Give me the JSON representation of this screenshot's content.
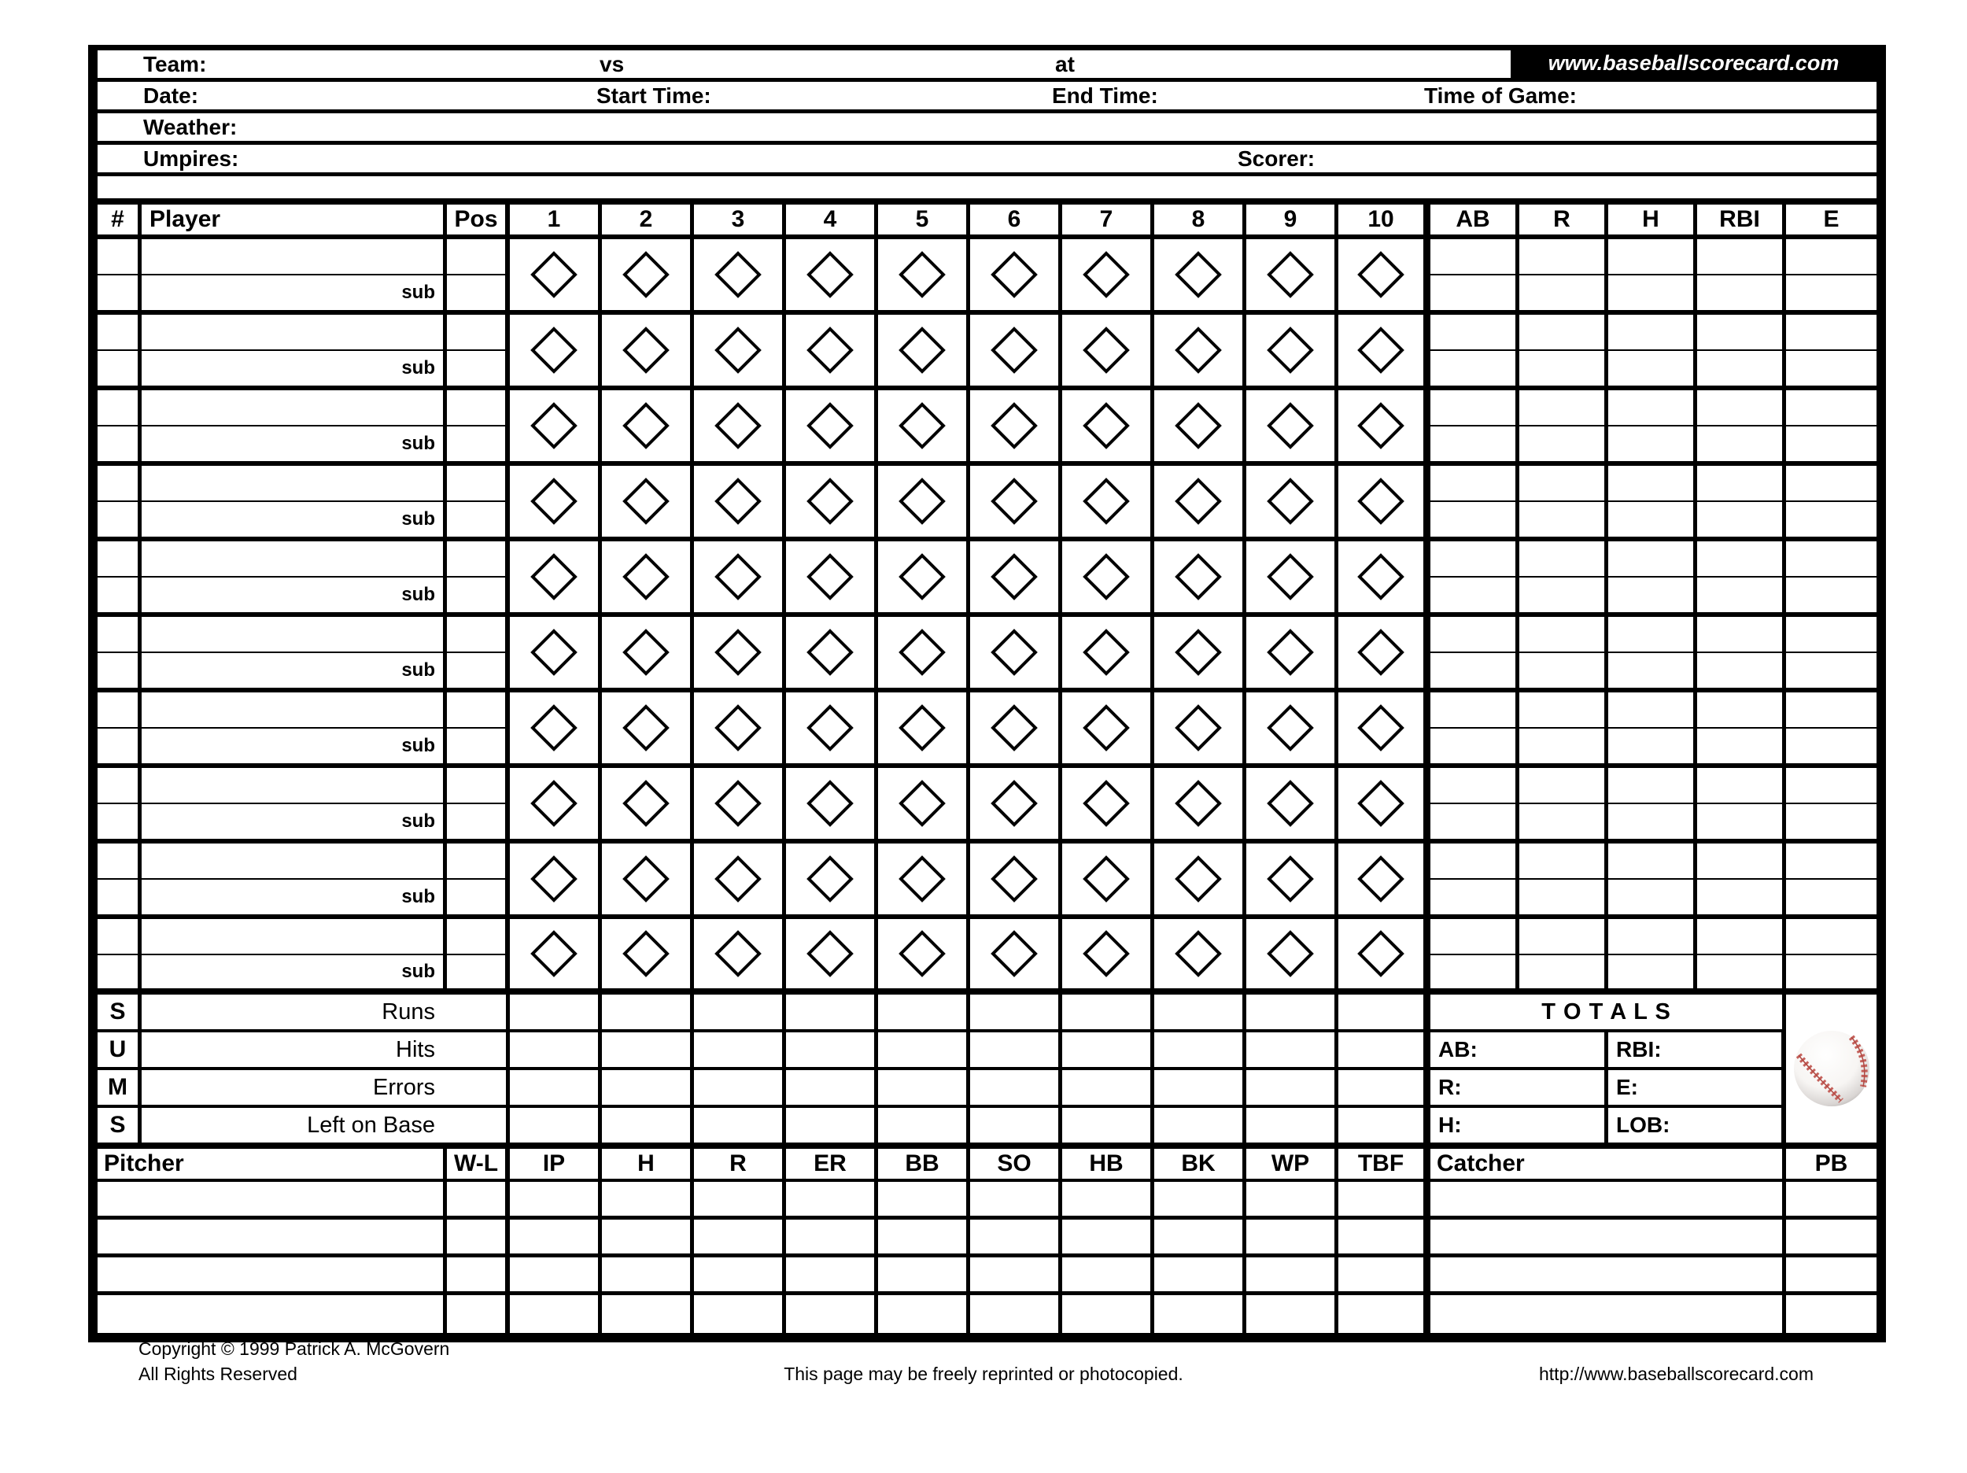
{
  "site_banner": "www.baseballscorecard.com",
  "header": {
    "team_label": "Team:",
    "vs_label": "vs",
    "at_label": "at",
    "date_label": "Date:",
    "start_time_label": "Start Time:",
    "end_time_label": "End Time:",
    "time_of_game_label": "Time of Game:",
    "weather_label": "Weather:",
    "umpires_label": "Umpires:",
    "scorer_label": "Scorer:"
  },
  "batting": {
    "number_header": "#",
    "player_header": "Player",
    "pos_header": "Pos",
    "inning_headers": [
      "1",
      "2",
      "3",
      "4",
      "5",
      "6",
      "7",
      "8",
      "9",
      "10"
    ],
    "stat_headers": [
      "AB",
      "R",
      "H",
      "RBI",
      "E"
    ],
    "player_rows": 10,
    "sub_label": "sub"
  },
  "sums": {
    "letters": [
      "S",
      "U",
      "M",
      "S"
    ],
    "row_labels": [
      "Runs",
      "Hits",
      "Errors",
      "Left on Base"
    ],
    "totals_title": "T O T A L S",
    "totals_fields_left": [
      "AB:",
      "R:",
      "H:"
    ],
    "totals_fields_right": [
      "RBI:",
      "E:",
      "LOB:"
    ]
  },
  "pitching": {
    "pitcher_header": "Pitcher",
    "wl_header": "W-L",
    "stat_headers": [
      "IP",
      "H",
      "R",
      "ER",
      "BB",
      "SO",
      "HB",
      "BK",
      "WP",
      "TBF"
    ],
    "catcher_header": "Catcher",
    "pb_header": "PB",
    "rows": 4
  },
  "footer": {
    "copyright": "Copyright © 1999 Patrick A. McGovern",
    "rights": "All Rights Reserved",
    "notice": "This page may be freely reprinted or photocopied.",
    "url": "http://www.baseballscorecard.com"
  },
  "colors": {
    "ink": "#000000",
    "paper": "#ffffff",
    "banner_bg": "#000000",
    "banner_text": "#ffffff",
    "seam_red": "#c4605a"
  }
}
